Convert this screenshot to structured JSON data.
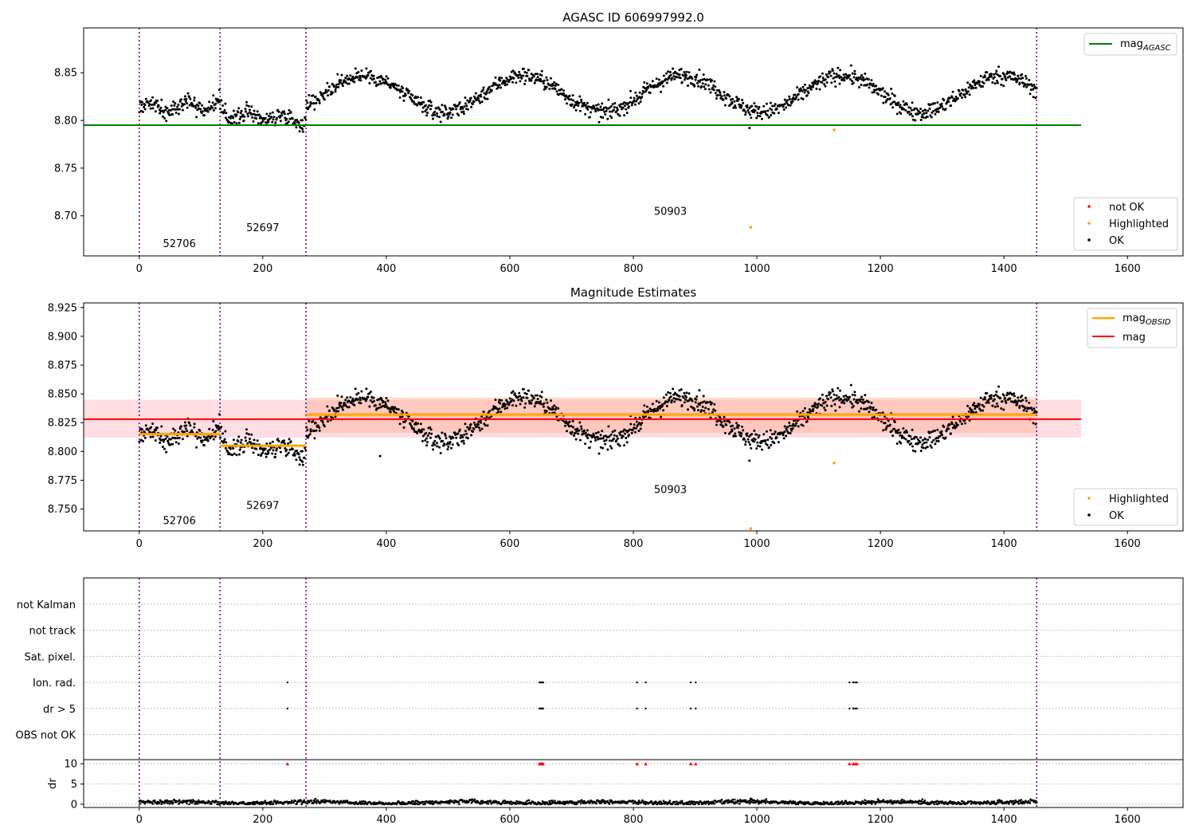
{
  "chart_data": [
    {
      "type": "scatter",
      "title": "AGASC ID 606997992.0",
      "xlim": [
        -90,
        1690
      ],
      "ylim": [
        8.658,
        8.897
      ],
      "xticks": [
        0,
        200,
        400,
        600,
        800,
        1000,
        1200,
        1400,
        1600
      ],
      "yticks": [
        8.7,
        8.75,
        8.8,
        8.85
      ],
      "ytick_decimals": 2,
      "legend_top": {
        "position": "upper right",
        "entries": [
          {
            "label": "mag",
            "sub": "AGASC",
            "color": "#008000",
            "marker": "line"
          }
        ]
      },
      "legend_bottom": {
        "position": "lower right",
        "entries": [
          {
            "label": "not OK",
            "color": "#ff0000",
            "marker": "dot"
          },
          {
            "label": "Highlighted",
            "color": "#ffa500",
            "marker": "dot"
          },
          {
            "label": "OK",
            "color": "#000000",
            "marker": "dot"
          }
        ]
      },
      "hlines": [
        {
          "y": 8.795,
          "x": [
            -90,
            1525
          ],
          "color": "#008000",
          "width": 2
        }
      ],
      "obs_boundaries": [
        0,
        131,
        270,
        1453
      ],
      "obs_labels": [
        {
          "text": "52706",
          "x": 65,
          "y": 8.667
        },
        {
          "text": "52697",
          "x": 200,
          "y": 8.684
        },
        {
          "text": "50903",
          "x": 860,
          "y": 8.701
        }
      ],
      "segments": [
        {
          "x": [
            0,
            131
          ],
          "base": [
            8.812,
            8.818
          ],
          "amp": 0.006,
          "period": 60,
          "noise": 0.006
        },
        {
          "x": [
            131,
            270
          ],
          "base": [
            8.808,
            8.8
          ],
          "amp": 0.004,
          "period": 55,
          "noise": 0.006
        },
        {
          "x": [
            270,
            1453
          ],
          "base": [
            8.828,
            8.828
          ],
          "amp": 0.019,
          "period": 258,
          "phase": 0.84,
          "noise": 0.006
        }
      ],
      "highlighted": [
        {
          "x": 990,
          "y": 8.688
        },
        {
          "x": 1125,
          "y": 8.79
        }
      ],
      "dip": {
        "x": 988,
        "y": 8.792
      }
    },
    {
      "type": "scatter",
      "title": "Magnitude Estimates",
      "xlim": [
        -90,
        1690
      ],
      "ylim": [
        8.731,
        8.929
      ],
      "xticks": [
        0,
        200,
        400,
        600,
        800,
        1000,
        1200,
        1400,
        1600
      ],
      "yticks": [
        8.75,
        8.775,
        8.8,
        8.825,
        8.85,
        8.875,
        8.9,
        8.925
      ],
      "ytick_decimals": 3,
      "legend_top": {
        "position": "upper right",
        "entries": [
          {
            "label": "mag",
            "sub": "OBSID",
            "color": "#ffa500",
            "marker": "line"
          },
          {
            "label": "mag",
            "color": "#ff0000",
            "marker": "line"
          }
        ]
      },
      "legend_bottom": {
        "position": "lower right",
        "entries": [
          {
            "label": "Highlighted",
            "color": "#ffa500",
            "marker": "dot"
          },
          {
            "label": "OK",
            "color": "#000000",
            "marker": "dot"
          }
        ]
      },
      "bands": [
        {
          "x": [
            -90,
            1525
          ],
          "y": [
            8.812,
            8.845
          ],
          "color": "#ffb6c1",
          "opacity": 0.45
        },
        {
          "x": [
            270,
            1453
          ],
          "y": [
            8.816,
            8.847
          ],
          "color": "#ffa07a",
          "opacity": 0.35
        }
      ],
      "hlines": [
        {
          "y": 8.828,
          "x": [
            -90,
            1525
          ],
          "color": "#ff0000",
          "width": 2
        },
        {
          "y": 8.815,
          "x": [
            0,
            131
          ],
          "color": "#ffa500",
          "width": 3
        },
        {
          "y": 8.805,
          "x": [
            131,
            270
          ],
          "color": "#ffa500",
          "width": 3
        },
        {
          "y": 8.832,
          "x": [
            270,
            1453
          ],
          "color": "#ffa500",
          "width": 3
        }
      ],
      "obs_boundaries": [
        0,
        131,
        270,
        1453
      ],
      "obs_labels": [
        {
          "text": "52706",
          "x": 65,
          "y": 8.737
        },
        {
          "text": "52697",
          "x": 200,
          "y": 8.75
        },
        {
          "text": "50903",
          "x": 860,
          "y": 8.764
        }
      ],
      "segments": [
        {
          "x": [
            0,
            131
          ],
          "base": [
            8.812,
            8.818
          ],
          "amp": 0.006,
          "period": 60,
          "noise": 0.006
        },
        {
          "x": [
            131,
            270
          ],
          "base": [
            8.808,
            8.8
          ],
          "amp": 0.004,
          "period": 55,
          "noise": 0.006
        },
        {
          "x": [
            270,
            1453
          ],
          "base": [
            8.828,
            8.828
          ],
          "amp": 0.019,
          "period": 258,
          "phase": 0.84,
          "noise": 0.006
        }
      ],
      "highlighted": [
        {
          "x": 990,
          "y": 8.733
        },
        {
          "x": 1125,
          "y": 8.79
        }
      ],
      "extra_ok": [
        {
          "x": 390,
          "y": 8.796
        },
        {
          "x": 988,
          "y": 8.792
        }
      ]
    },
    {
      "type": "scatter",
      "title": "",
      "xlim": [
        -90,
        1690
      ],
      "xticks": [
        0,
        200,
        400,
        600,
        800,
        1000,
        1200,
        1400,
        1600
      ],
      "flag_rows": [
        "not Kalman",
        "not track",
        "Sat. pixel.",
        "Ion. rad.",
        "dr > 5",
        "OBS not OK"
      ],
      "flag_points": {
        "Ion. rad.": [
          240,
          648,
          650,
          652,
          654,
          806,
          820,
          893,
          901,
          1150,
          1156,
          1159,
          1162
        ],
        "dr > 5": [
          240,
          648,
          650,
          652,
          654,
          806,
          820,
          893,
          901,
          1150,
          1156,
          1159,
          1162
        ]
      },
      "dr": {
        "ylabel": "dr",
        "ylim": [
          -0.8,
          11
        ],
        "yticks": [
          0,
          5,
          10
        ],
        "threshold": 10,
        "baseline_mean": 0.45,
        "baseline_amp": 0.4,
        "outliers": [
          {
            "x": 990,
            "y": 1.4
          }
        ],
        "flagged_x": [
          240,
          648,
          650,
          652,
          654,
          806,
          820,
          893,
          901,
          1150,
          1156,
          1159,
          1162
        ]
      },
      "obs_boundaries": [
        0,
        131,
        270,
        1453
      ]
    }
  ]
}
